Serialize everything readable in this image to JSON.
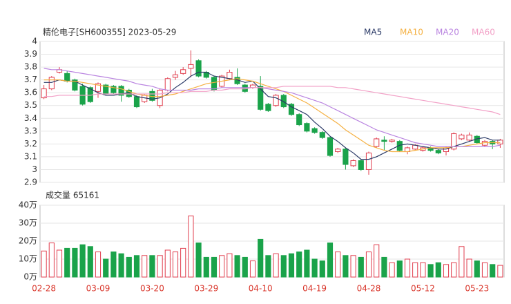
{
  "chart_data": [
    {
      "type": "candlestick",
      "title": "精伦电子[SH600355] 2023-05-29",
      "up_color": "#e03c4c",
      "down_color": "#1aa34a",
      "open": [
        3.56,
        3.63,
        3.76,
        3.75,
        3.7,
        3.65,
        3.64,
        3.61,
        3.66,
        3.65,
        3.65,
        3.62,
        3.57,
        3.53,
        3.61,
        3.5,
        3.62,
        3.72,
        3.75,
        3.79,
        3.85,
        3.76,
        3.72,
        3.65,
        3.71,
        3.72,
        3.66,
        3.64,
        3.65,
        3.51,
        3.5,
        3.58,
        3.51,
        3.43,
        3.36,
        3.32,
        3.29,
        3.25,
        3.14,
        3.16,
        3.03,
        3.07,
        3.0,
        3.18,
        3.23,
        3.22,
        3.22,
        3.14,
        3.16,
        3.15,
        3.17,
        3.15,
        3.14,
        3.16,
        3.24,
        3.23,
        3.26,
        3.19,
        3.22,
        3.2
      ],
      "high": [
        3.66,
        3.73,
        3.8,
        3.77,
        3.71,
        3.67,
        3.65,
        3.68,
        3.67,
        3.66,
        3.66,
        3.63,
        3.58,
        3.59,
        3.63,
        3.63,
        3.72,
        3.77,
        3.8,
        3.93,
        3.86,
        3.77,
        3.73,
        3.74,
        3.78,
        3.79,
        3.67,
        3.67,
        3.73,
        3.52,
        3.59,
        3.59,
        3.52,
        3.44,
        3.37,
        3.33,
        3.3,
        3.26,
        3.17,
        3.17,
        3.08,
        3.08,
        3.14,
        3.25,
        3.26,
        3.24,
        3.23,
        3.18,
        3.2,
        3.18,
        3.18,
        3.16,
        3.18,
        3.29,
        3.28,
        3.29,
        3.27,
        3.23,
        3.23,
        3.24
      ],
      "low": [
        3.55,
        3.62,
        3.75,
        3.68,
        3.61,
        3.5,
        3.52,
        3.56,
        3.58,
        3.59,
        3.53,
        3.56,
        3.48,
        3.52,
        3.53,
        3.48,
        3.61,
        3.7,
        3.74,
        3.72,
        3.72,
        3.71,
        3.61,
        3.64,
        3.7,
        3.66,
        3.6,
        3.63,
        3.46,
        3.45,
        3.49,
        3.48,
        3.42,
        3.34,
        3.29,
        3.28,
        3.24,
        3.1,
        3.13,
        3.0,
        3.02,
        2.99,
        2.96,
        3.17,
        3.15,
        3.21,
        3.14,
        3.12,
        3.15,
        3.14,
        3.14,
        3.12,
        3.11,
        3.15,
        3.23,
        3.22,
        3.2,
        3.18,
        3.16,
        3.17
      ],
      "close": [
        3.63,
        3.72,
        3.78,
        3.69,
        3.62,
        3.51,
        3.53,
        3.67,
        3.59,
        3.6,
        3.58,
        3.57,
        3.49,
        3.58,
        3.54,
        3.62,
        3.71,
        3.74,
        3.78,
        3.82,
        3.73,
        3.72,
        3.62,
        3.73,
        3.76,
        3.67,
        3.61,
        3.66,
        3.47,
        3.46,
        3.58,
        3.49,
        3.43,
        3.35,
        3.3,
        3.29,
        3.25,
        3.11,
        3.16,
        3.04,
        3.07,
        3.0,
        3.13,
        3.24,
        3.22,
        3.23,
        3.15,
        3.17,
        3.19,
        3.17,
        3.15,
        3.13,
        3.17,
        3.28,
        3.27,
        3.27,
        3.21,
        3.22,
        3.2,
        3.23
      ],
      "series": [
        {
          "name": "MA5",
          "color": "#2b3a67",
          "values": [
            3.68,
            3.68,
            3.7,
            3.69,
            3.69,
            3.66,
            3.63,
            3.6,
            3.58,
            3.58,
            3.59,
            3.6,
            3.57,
            3.56,
            3.55,
            3.56,
            3.59,
            3.64,
            3.68,
            3.73,
            3.76,
            3.76,
            3.73,
            3.72,
            3.71,
            3.7,
            3.68,
            3.69,
            3.63,
            3.57,
            3.56,
            3.53,
            3.49,
            3.46,
            3.43,
            3.37,
            3.32,
            3.26,
            3.22,
            3.17,
            3.13,
            3.08,
            3.08,
            3.1,
            3.13,
            3.16,
            3.19,
            3.2,
            3.19,
            3.18,
            3.17,
            3.16,
            3.16,
            3.18,
            3.2,
            3.22,
            3.24,
            3.25,
            3.23,
            3.23
          ]
        },
        {
          "name": "MA10",
          "color": "#f5b041",
          "values": [
            3.7,
            3.7,
            3.7,
            3.69,
            3.69,
            3.68,
            3.67,
            3.66,
            3.65,
            3.64,
            3.63,
            3.61,
            3.59,
            3.58,
            3.57,
            3.57,
            3.58,
            3.59,
            3.61,
            3.63,
            3.65,
            3.67,
            3.68,
            3.69,
            3.7,
            3.71,
            3.7,
            3.69,
            3.67,
            3.65,
            3.63,
            3.61,
            3.58,
            3.55,
            3.52,
            3.48,
            3.44,
            3.4,
            3.36,
            3.31,
            3.27,
            3.23,
            3.19,
            3.17,
            3.15,
            3.14,
            3.14,
            3.14,
            3.15,
            3.16,
            3.17,
            3.17,
            3.17,
            3.18,
            3.18,
            3.19,
            3.2,
            3.21,
            3.21,
            3.21
          ]
        },
        {
          "name": "MA20",
          "color": "#b983e0",
          "values": [
            3.79,
            3.78,
            3.78,
            3.77,
            3.76,
            3.75,
            3.74,
            3.73,
            3.72,
            3.71,
            3.7,
            3.69,
            3.67,
            3.66,
            3.65,
            3.63,
            3.62,
            3.62,
            3.62,
            3.62,
            3.63,
            3.63,
            3.63,
            3.64,
            3.64,
            3.64,
            3.64,
            3.64,
            3.64,
            3.63,
            3.62,
            3.61,
            3.6,
            3.58,
            3.56,
            3.54,
            3.52,
            3.49,
            3.46,
            3.43,
            3.4,
            3.37,
            3.34,
            3.31,
            3.29,
            3.27,
            3.25,
            3.23,
            3.21,
            3.2,
            3.19,
            3.18,
            3.18,
            3.18,
            3.18,
            3.18,
            3.18,
            3.18,
            3.18,
            3.19
          ]
        },
        {
          "name": "MA60",
          "color": "#f2a1c7",
          "values": [
            3.57,
            3.57,
            3.58,
            3.58,
            3.58,
            3.58,
            3.58,
            3.59,
            3.59,
            3.59,
            3.59,
            3.59,
            3.59,
            3.59,
            3.59,
            3.59,
            3.6,
            3.6,
            3.6,
            3.61,
            3.61,
            3.61,
            3.62,
            3.62,
            3.63,
            3.63,
            3.63,
            3.64,
            3.64,
            3.64,
            3.64,
            3.65,
            3.65,
            3.65,
            3.65,
            3.65,
            3.65,
            3.65,
            3.64,
            3.64,
            3.63,
            3.62,
            3.61,
            3.6,
            3.59,
            3.58,
            3.57,
            3.56,
            3.55,
            3.54,
            3.53,
            3.52,
            3.51,
            3.5,
            3.49,
            3.48,
            3.47,
            3.46,
            3.45,
            3.43
          ]
        }
      ],
      "ylim": [
        2.9,
        4
      ],
      "yticks": [
        2.9,
        3,
        3.1,
        3.2,
        3.3,
        3.4,
        3.5,
        3.6,
        3.7,
        3.8,
        3.9,
        4
      ],
      "grid": true
    },
    {
      "type": "bar",
      "title": "成交量 65161",
      "axis_label_color": "#d9362b",
      "categories": [
        "02-28",
        null,
        null,
        null,
        null,
        null,
        null,
        "03-09",
        null,
        null,
        null,
        null,
        null,
        null,
        "03-20",
        null,
        null,
        null,
        null,
        null,
        null,
        "03-29",
        null,
        null,
        null,
        null,
        null,
        null,
        "04-10",
        null,
        null,
        null,
        null,
        null,
        null,
        "04-19",
        null,
        null,
        null,
        null,
        null,
        null,
        "04-28",
        null,
        null,
        null,
        null,
        null,
        null,
        "05-12",
        null,
        null,
        null,
        null,
        null,
        null,
        "05-23",
        null,
        null,
        null
      ],
      "values": [
        14.5,
        19,
        15,
        16,
        16,
        18,
        17,
        14,
        10,
        14,
        13,
        11,
        12,
        12,
        12,
        12,
        15,
        14,
        16,
        34,
        19,
        11,
        11,
        12,
        13,
        12,
        11,
        9,
        21,
        12,
        13,
        12,
        13,
        14,
        15,
        10,
        9,
        19,
        14,
        12,
        12,
        11,
        14,
        18,
        11,
        8,
        9,
        10,
        8,
        8,
        7,
        8,
        7,
        8,
        17,
        10,
        9,
        8,
        7,
        6.5161
      ],
      "ylim": [
        0,
        40
      ],
      "yticks": [
        {
          "value": 0,
          "label": "0万"
        },
        {
          "value": 10,
          "label": "10万"
        },
        {
          "value": 20,
          "label": "20万"
        },
        {
          "value": 30,
          "label": "30万"
        },
        {
          "value": 40,
          "label": "40万"
        }
      ],
      "grid": true
    }
  ]
}
